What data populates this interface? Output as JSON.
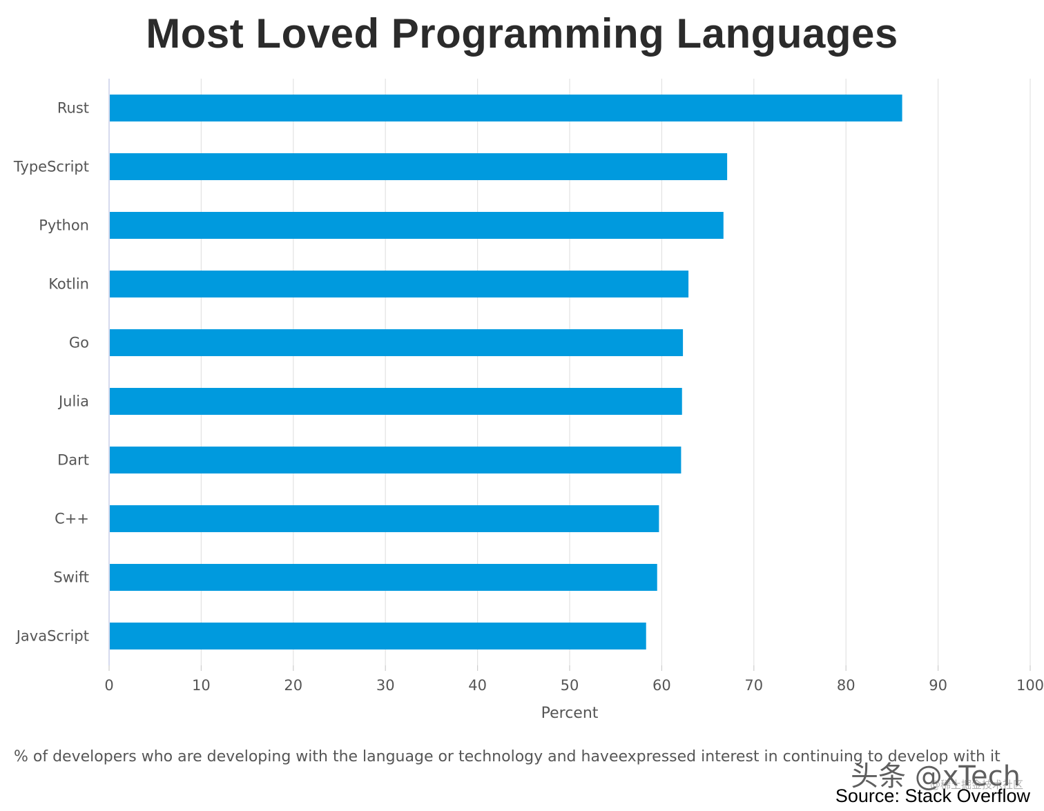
{
  "chart_data": {
    "type": "bar",
    "orientation": "horizontal",
    "title": "Most Loved Programming Languages",
    "categories": [
      "Rust",
      "TypeScript",
      "Python",
      "Kotlin",
      "Go",
      "Julia",
      "Dart",
      "C++",
      "Swift",
      "JavaScript"
    ],
    "values": [
      86.1,
      67.1,
      66.7,
      62.9,
      62.3,
      62.2,
      62.1,
      59.7,
      59.5,
      58.3
    ],
    "xlabel": "Percent",
    "xlim": [
      0,
      100
    ],
    "xticks": [
      "0",
      "10",
      "20",
      "30",
      "40",
      "50",
      "60",
      "70",
      "80",
      "90",
      "100"
    ],
    "grid": "vertical",
    "bar_color": "#009ade",
    "caption": "% of developers who are developing with the language or technology and haveexpressed interest in continuing to develop with it",
    "source": "Source: Stack Overflow"
  },
  "watermark": {
    "text": "头条 @xTech",
    "sub": "@稀土掘金技术社区"
  }
}
